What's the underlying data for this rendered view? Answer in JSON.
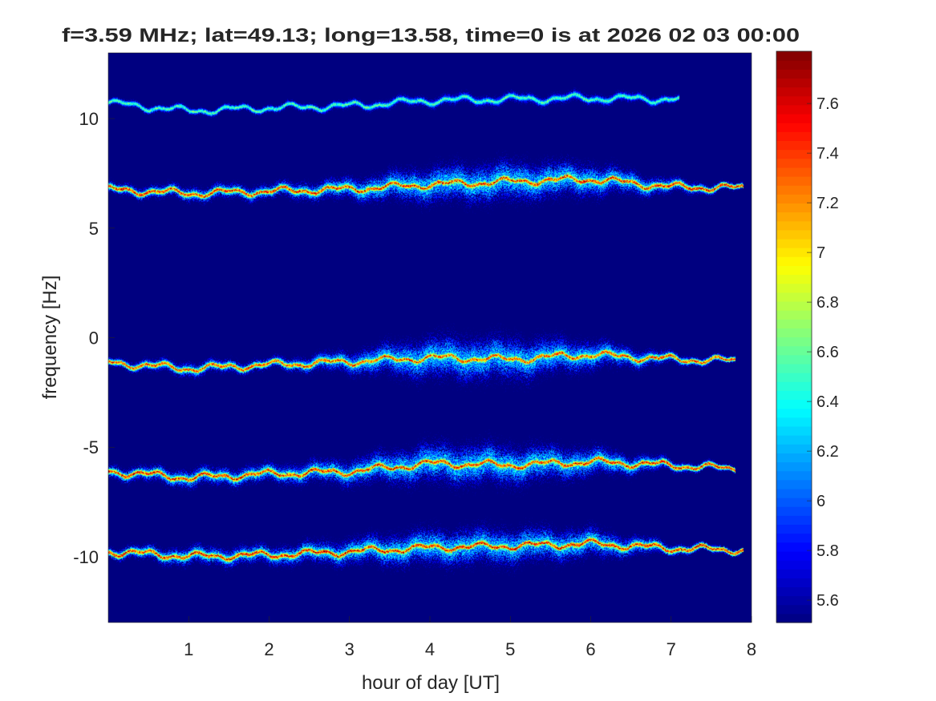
{
  "chart_data": {
    "type": "heatmap",
    "title": "f=3.59 MHz;  lat=49.13; long=13.58, time=0 is at 2026 02 03 00:00",
    "xlabel": "hour of day [UT]",
    "ylabel": "frequency [Hz]",
    "xlim": [
      0,
      8
    ],
    "ylim": [
      -13,
      13
    ],
    "xticks": [
      1,
      2,
      3,
      4,
      5,
      6,
      7,
      8
    ],
    "yticks": [
      -10,
      -5,
      0,
      5,
      10
    ],
    "colormap": "jet",
    "clim": [
      5.51,
      7.81
    ],
    "colorbar_ticks": [
      5.6,
      5.8,
      6.0,
      6.2,
      6.4,
      6.6,
      6.8,
      7.0,
      7.2,
      7.4,
      7.6
    ],
    "colorbar_tick_labels": [
      "5.6",
      "5.8",
      "6",
      "6.2",
      "6.4",
      "6.6",
      "6.8",
      "7",
      "7.2",
      "7.4",
      "7.6"
    ],
    "background_value": 5.51,
    "grid": false,
    "traces": [
      {
        "hours": [
          0,
          1,
          2,
          3,
          4,
          5,
          6,
          7,
          7.1
        ],
        "center_hz": [
          10.73,
          10.37,
          10.5,
          10.6,
          10.84,
          10.9,
          10.95,
          10.9,
          10.9
        ],
        "spread_hz": [
          0.1,
          0.1,
          0.1,
          0.12,
          0.15,
          0.15,
          0.15,
          0.12,
          0.1
        ],
        "peak_value": 6.7
      },
      {
        "hours": [
          0,
          1,
          2,
          3,
          4,
          5,
          6,
          7,
          7.9
        ],
        "center_hz": [
          6.78,
          6.6,
          6.7,
          6.8,
          7.0,
          7.15,
          7.25,
          6.9,
          6.85
        ],
        "spread_hz": [
          0.15,
          0.2,
          0.2,
          0.3,
          0.5,
          0.55,
          0.45,
          0.2,
          0.08
        ],
        "peak_value": 7.7
      },
      {
        "hours": [
          0,
          1,
          2,
          3,
          4,
          5,
          6,
          7,
          7.8
        ],
        "center_hz": [
          -1.12,
          -1.4,
          -1.22,
          -1.08,
          -0.9,
          -0.97,
          -0.75,
          -0.97,
          -1.04
        ],
        "spread_hz": [
          0.12,
          0.2,
          0.15,
          0.3,
          0.6,
          0.6,
          0.4,
          0.15,
          0.08
        ],
        "peak_value": 7.6
      },
      {
        "hours": [
          0,
          1,
          2,
          3,
          4,
          5,
          6,
          7,
          7.8
        ],
        "center_hz": [
          -6.09,
          -6.38,
          -6.2,
          -6.09,
          -5.72,
          -5.8,
          -5.65,
          -5.8,
          -5.98
        ],
        "spread_hz": [
          0.18,
          0.25,
          0.25,
          0.35,
          0.55,
          0.55,
          0.4,
          0.15,
          0.08
        ],
        "peak_value": 7.7
      },
      {
        "hours": [
          0,
          1,
          2,
          3,
          4,
          5,
          6,
          7,
          7.9
        ],
        "center_hz": [
          -9.75,
          -9.96,
          -9.9,
          -9.75,
          -9.56,
          -9.49,
          -9.38,
          -9.6,
          -9.67
        ],
        "spread_hz": [
          0.15,
          0.25,
          0.25,
          0.35,
          0.5,
          0.5,
          0.4,
          0.15,
          0.08
        ],
        "peak_value": 7.75
      }
    ]
  }
}
